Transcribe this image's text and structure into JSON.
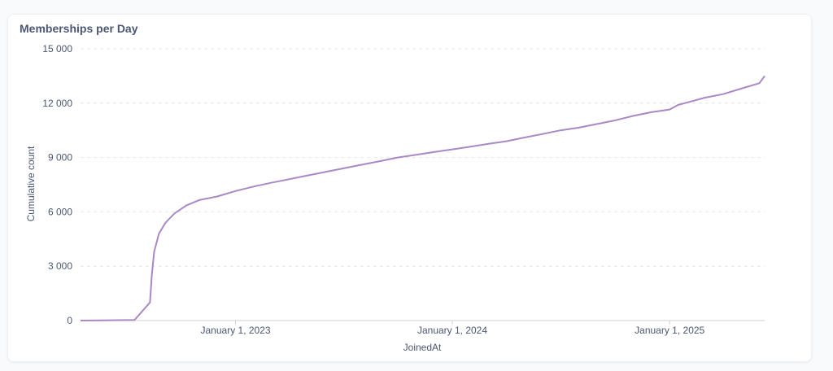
{
  "card": {
    "title": "Memberships per Day"
  },
  "colors": {
    "line": "#a989c5",
    "grid": "#e3e6eb",
    "axis": "#ccd1d9",
    "text": "#4c5773"
  },
  "chart_data": {
    "type": "line",
    "title": "Memberships per Day",
    "xlabel": "JoinedAt",
    "ylabel": "Cumulative count",
    "ylim": [
      0,
      15000
    ],
    "y_ticks": [
      0,
      3000,
      6000,
      9000,
      12000,
      15000
    ],
    "y_tick_labels": [
      "0",
      "3 000",
      "6 000",
      "9 000",
      "12 000",
      "15 000"
    ],
    "x_ticks": [
      "2023-01-01",
      "2024-01-01",
      "2025-01-01"
    ],
    "x_tick_labels": [
      "January 1, 2023",
      "January 1, 2024",
      "January 1, 2025"
    ],
    "xlim": [
      "2022-04-15",
      "2025-06-10"
    ],
    "grid": true,
    "series": [
      {
        "x": [
          "2022-04-15",
          "2022-07-15",
          "2022-08-10",
          "2022-08-13",
          "2022-08-17",
          "2022-08-25",
          "2022-09-05",
          "2022-09-20",
          "2022-10-10",
          "2022-11-01",
          "2022-12-01",
          "2023-01-01",
          "2023-02-01",
          "2023-03-01",
          "2023-04-01",
          "2023-05-01",
          "2023-06-01",
          "2023-07-01",
          "2023-08-01",
          "2023-09-01",
          "2023-10-01",
          "2023-11-01",
          "2023-12-01",
          "2024-01-01",
          "2024-02-01",
          "2024-03-01",
          "2024-04-01",
          "2024-05-01",
          "2024-06-01",
          "2024-07-01",
          "2024-08-01",
          "2024-09-01",
          "2024-10-01",
          "2024-11-01",
          "2024-12-01",
          "2025-01-01",
          "2025-01-15",
          "2025-02-01",
          "2025-03-01",
          "2025-04-01",
          "2025-05-01",
          "2025-06-01",
          "2025-06-10"
        ],
        "y": [
          0,
          30,
          1000,
          2500,
          3800,
          4800,
          5400,
          5900,
          6350,
          6650,
          6850,
          7150,
          7400,
          7600,
          7800,
          8000,
          8200,
          8400,
          8600,
          8800,
          9000,
          9150,
          9300,
          9450,
          9600,
          9750,
          9900,
          10100,
          10300,
          10500,
          10650,
          10850,
          11050,
          11300,
          11500,
          11650,
          11900,
          12050,
          12300,
          12500,
          12800,
          13100,
          13500
        ]
      }
    ]
  }
}
